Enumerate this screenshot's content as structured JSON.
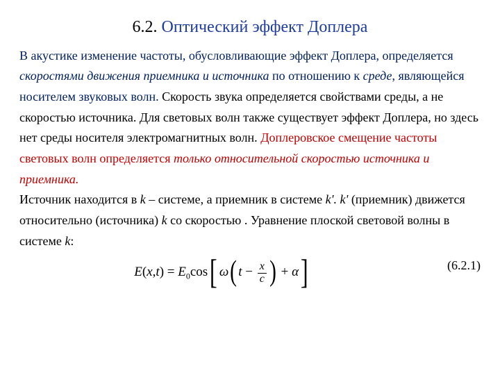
{
  "title": {
    "num": "6.2.",
    "main": "Оптический эффект Доплера"
  },
  "p1a": "В акустике изменение частоты, обусловливающие эффект Доплера, определяется ",
  "p1b": "скоростями движения приемника и источника",
  "p1c": " по отношению к ",
  "p1d": "среде",
  "p1e": ", являющейся носителем звуковых волн.",
  "p2a": "Скорость звука определяется свойствами среды, а не скоростью источника. Для световых волн также существует эффект Доплера, но здесь нет среды носителя электромагнитных волн. ",
  "p2b": "Доплеровское смещение частоты световых волн определяется ",
  "p2c": "только относительной скоростью источника и приемника.",
  "p3a": " Источник находится в ",
  "p3b": "k",
  "p3c": " – системе, а приемник в системе ",
  "p3d": "k'. k'",
  "p3e": " (приемник) движется относительно (источника) ",
  "p3f": "k",
  "p3g": " со скоростью . Уравнение плоской световой волны в системе ",
  "p3h": "k",
  "p3i": ":",
  "eq": {
    "lhs1": "E",
    "lhs2": "(",
    "lhs3": "x",
    "lhs4": ",",
    "lhs5": "t",
    "lhs6": ") = ",
    "E0a": "E",
    "E0b": "0",
    "cos": "cos",
    "omega": "ω",
    "t": "t",
    "minus": " − ",
    "x": "x",
    "c": "c",
    "plus": " + ",
    "alpha": "α",
    "num": "(6.2.1)"
  }
}
